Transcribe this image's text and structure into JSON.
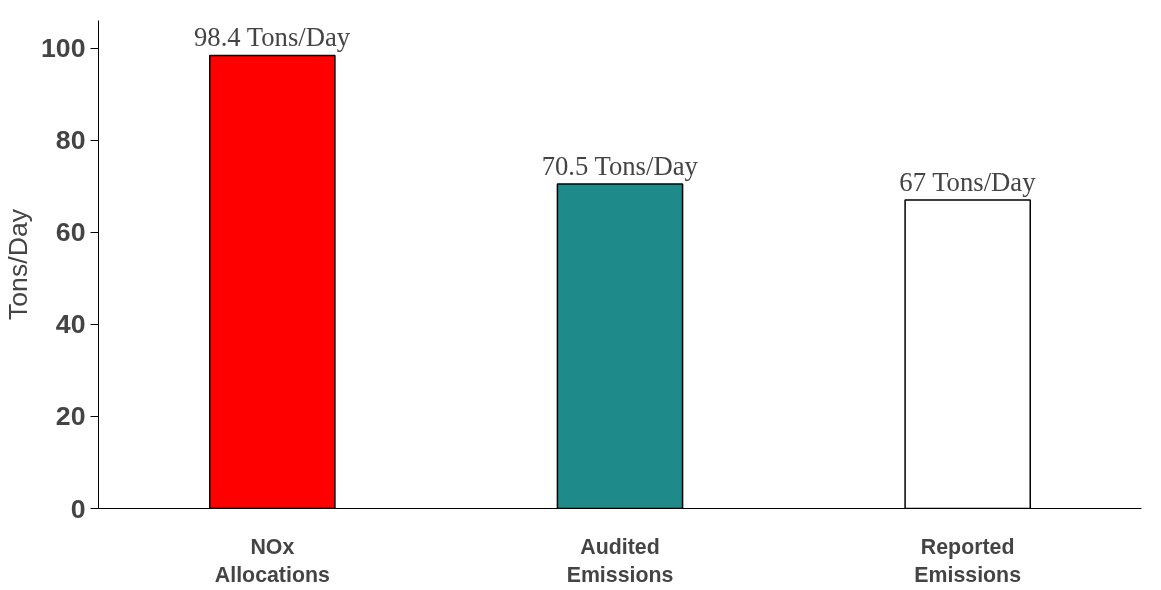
{
  "chart_data": {
    "type": "bar",
    "ylabel": "Tons/Day",
    "categories": [
      "NOx\nAllocations",
      "Audited\nEmissions",
      "Reported\nEmissions"
    ],
    "values": [
      98.4,
      70.5,
      67
    ],
    "colors": [
      "#ff0000",
      "#1f8a8a",
      "#ffffff"
    ],
    "value_labels": [
      "98.4 Tons/Day",
      "70.5 Tons/Day",
      "67 Tons/Day"
    ],
    "ylim": [
      0,
      106
    ],
    "yticks": [
      0,
      20,
      40,
      60,
      80,
      100
    ],
    "grid": false
  }
}
